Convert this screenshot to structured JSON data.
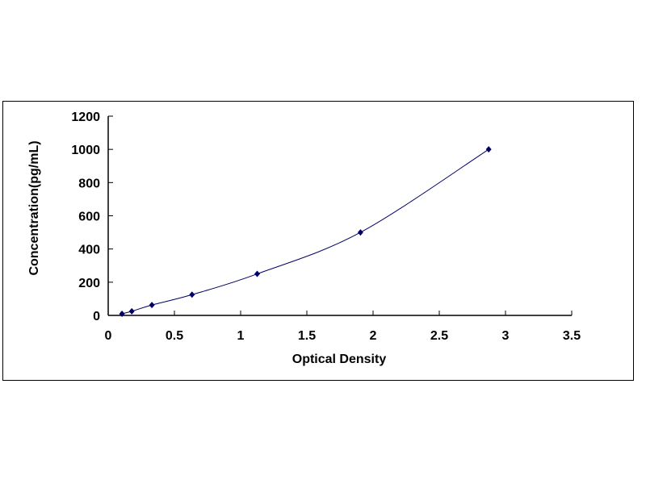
{
  "chart_data": {
    "type": "scatter",
    "title": "",
    "xlabel": "Optical Density",
    "ylabel": "Concentration(pg/mL)",
    "xlim": [
      0,
      3.5
    ],
    "ylim": [
      0,
      1200
    ],
    "xticks": [
      "0",
      "0.5",
      "1",
      "1.5",
      "2",
      "2.5",
      "3",
      "3.5"
    ],
    "yticks": [
      "0",
      "200",
      "400",
      "600",
      "800",
      "1000",
      "1200"
    ],
    "grid": false,
    "legend": "none",
    "marker_color": "#000066",
    "line_color": "#000066",
    "trendline": "smooth curve",
    "series": [
      {
        "x": [
          0.104,
          0.178,
          0.33,
          0.633,
          1.125,
          1.905,
          2.873
        ],
        "y": [
          10,
          25,
          62.5,
          125,
          250,
          500,
          1000
        ]
      }
    ]
  }
}
